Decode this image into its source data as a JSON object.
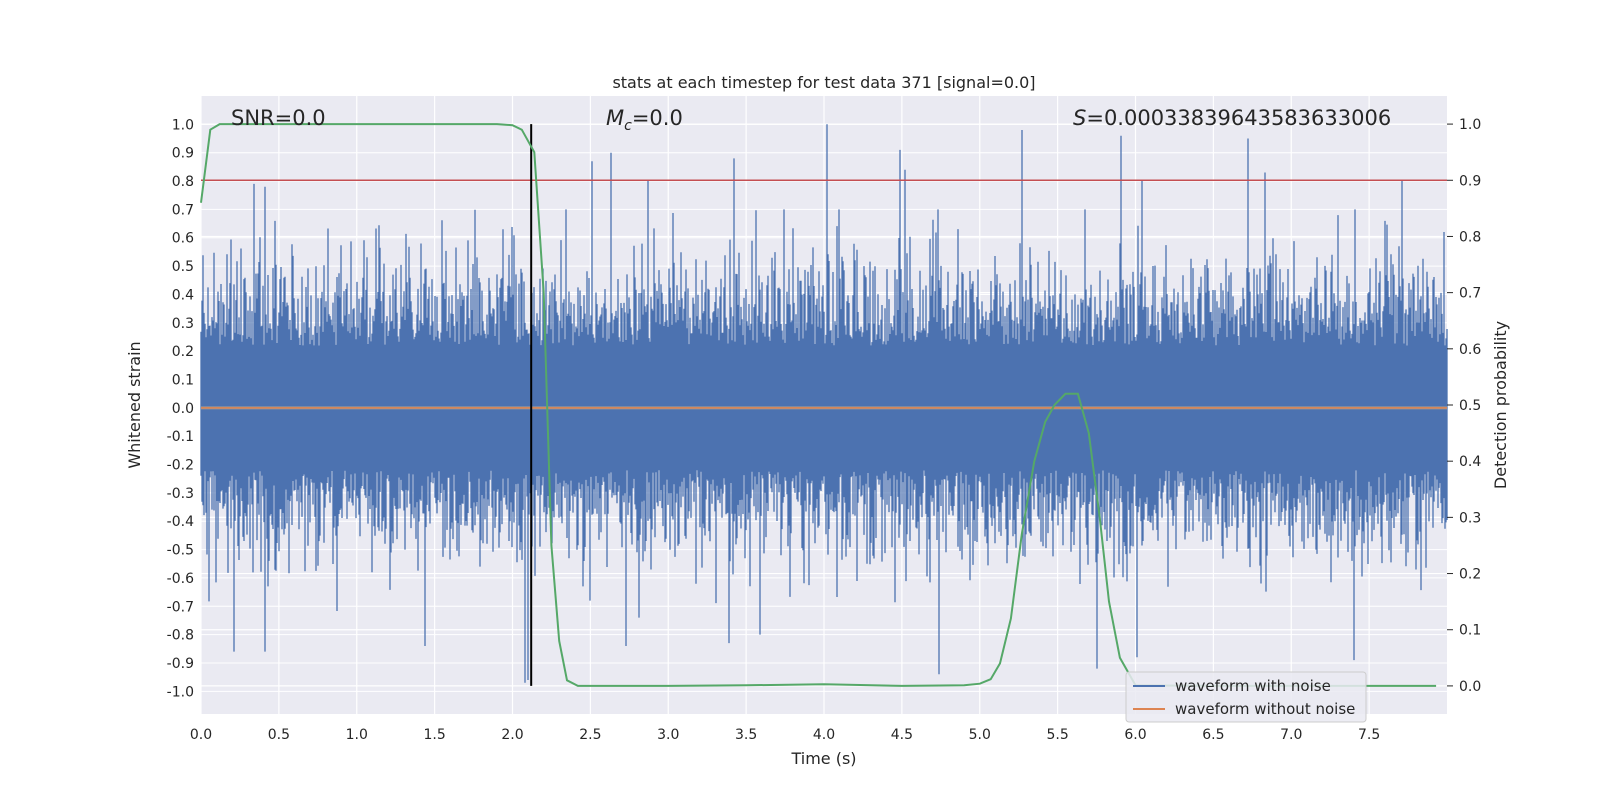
{
  "chart_data": {
    "type": "line",
    "title": "stats at each timestep for test data 371 [signal=0.0]",
    "xlabel": "Time (s)",
    "ylabel_left": "Whitened strain",
    "ylabel_right": "Detection probability",
    "xlim": [
      0.0,
      8.0
    ],
    "ylim_left": [
      -1.08,
      1.1
    ],
    "ylim_right": [
      -0.05,
      1.05
    ],
    "x_ticks": [
      "0.0",
      "0.5",
      "1.0",
      "1.5",
      "2.0",
      "2.5",
      "3.0",
      "3.5",
      "4.0",
      "4.5",
      "5.0",
      "5.5",
      "6.0",
      "6.5",
      "7.0",
      "7.5"
    ],
    "y_ticks_left": [
      "1.0",
      "0.9",
      "0.8",
      "0.7",
      "0.6",
      "0.5",
      "0.4",
      "0.3",
      "0.2",
      "0.1",
      "0.0",
      "-0.1",
      "-0.2",
      "-0.3",
      "-0.4",
      "-0.5",
      "-0.6",
      "-0.7",
      "-0.8",
      "-0.9",
      "-1.0"
    ],
    "y_ticks_right": [
      "1.0",
      "0.9",
      "0.8",
      "0.7",
      "0.6",
      "0.5",
      "0.4",
      "0.3",
      "0.2",
      "0.1",
      "0.0"
    ],
    "annotations": {
      "snr": "SNR=0.0",
      "mc_symbol": "M",
      "mc_subscript": "c",
      "mc_value": "=0.0",
      "s_symbol": "S",
      "s_value": "=0.00033839643583633006"
    },
    "threshold_line": {
      "y_right": 0.9,
      "color": "#c44e52"
    },
    "event_marker_time": 2.12,
    "series": [
      {
        "name": "waveform with noise",
        "color": "#4c72b0",
        "axis": "left",
        "description": "dense noise, roughly symmetric, typical envelope about +/-0.45",
        "notable_peaks": [
          {
            "t": 0.34,
            "v": 0.79
          },
          {
            "t": 0.41,
            "v": 0.78
          },
          {
            "t": 2.51,
            "v": 0.87
          },
          {
            "t": 2.63,
            "v": 0.9
          },
          {
            "t": 2.87,
            "v": 0.8
          },
          {
            "t": 3.42,
            "v": 0.88
          },
          {
            "t": 4.02,
            "v": 1.0
          },
          {
            "t": 4.49,
            "v": 0.91
          },
          {
            "t": 4.52,
            "v": 0.84
          },
          {
            "t": 5.27,
            "v": 0.98
          },
          {
            "t": 5.91,
            "v": 0.96
          },
          {
            "t": 6.04,
            "v": 0.8
          },
          {
            "t": 6.72,
            "v": 0.95
          },
          {
            "t": 6.83,
            "v": 0.83
          },
          {
            "t": 7.71,
            "v": 0.8
          },
          {
            "t": 0.21,
            "v": -0.86
          },
          {
            "t": 0.41,
            "v": -0.86
          },
          {
            "t": 1.44,
            "v": -0.84
          },
          {
            "t": 2.08,
            "v": -0.97
          },
          {
            "t": 2.1,
            "v": -0.96
          },
          {
            "t": 2.73,
            "v": -0.84
          },
          {
            "t": 3.39,
            "v": -0.83
          },
          {
            "t": 3.59,
            "v": -0.8
          },
          {
            "t": 4.74,
            "v": -0.94
          },
          {
            "t": 5.75,
            "v": -0.92
          },
          {
            "t": 6.01,
            "v": -0.88
          },
          {
            "t": 7.4,
            "v": -0.89
          }
        ]
      },
      {
        "name": "waveform without noise",
        "color": "#dd8452",
        "axis": "left",
        "x": [
          0.0,
          8.0
        ],
        "values": [
          0.0,
          0.0
        ]
      },
      {
        "name": "detection probability",
        "color": "#55a868",
        "axis": "right",
        "in_legend": false,
        "x": [
          0.0,
          0.06,
          0.12,
          0.5,
          1.0,
          1.5,
          1.9,
          2.0,
          2.06,
          2.14,
          2.2,
          2.25,
          2.3,
          2.35,
          2.42,
          2.5,
          3.0,
          3.5,
          4.0,
          4.5,
          4.9,
          5.0,
          5.07,
          5.13,
          5.2,
          5.27,
          5.35,
          5.42,
          5.48,
          5.55,
          5.63,
          5.7,
          5.77,
          5.83,
          5.9,
          6.0,
          6.5,
          7.0,
          7.5,
          7.93
        ],
        "values": [
          0.86,
          0.99,
          1.0,
          1.0,
          1.0,
          1.0,
          1.0,
          0.998,
          0.99,
          0.95,
          0.7,
          0.25,
          0.08,
          0.01,
          0.0,
          0.0,
          0.0,
          0.001,
          0.003,
          0.0,
          0.001,
          0.004,
          0.012,
          0.04,
          0.12,
          0.27,
          0.4,
          0.47,
          0.5,
          0.52,
          0.52,
          0.45,
          0.3,
          0.15,
          0.05,
          0.001,
          0.0,
          0.0,
          0.0,
          0.0
        ]
      }
    ],
    "legend": {
      "placement": "lower-right",
      "entries": [
        {
          "label": "waveform with noise",
          "color": "#4c72b0"
        },
        {
          "label": "waveform without noise",
          "color": "#dd8452"
        }
      ]
    }
  }
}
